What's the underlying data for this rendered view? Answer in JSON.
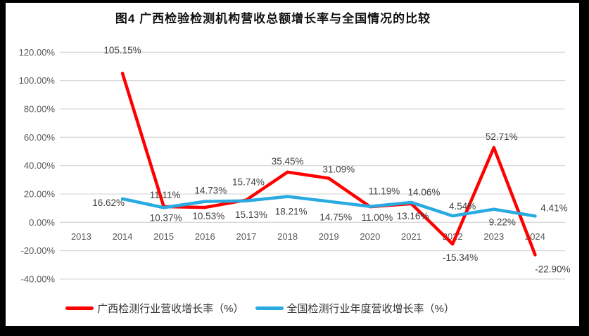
{
  "chart_data": {
    "type": "line",
    "title": "图4 广西检验检测机构营收总额增长率与全国情况的比较",
    "categories": [
      "2013",
      "2014",
      "2015",
      "2016",
      "2017",
      "2018",
      "2019",
      "2020",
      "2021",
      "2022",
      "2023",
      "2024"
    ],
    "y_ticks": [
      "120.00%",
      "100.00%",
      "80.00%",
      "60.00%",
      "40.00%",
      "20.00%",
      "0.00%",
      "-20.00%",
      "-40.00%"
    ],
    "ylim": [
      -40,
      120
    ],
    "y_tick_step": 20,
    "grid": true,
    "legend_position": "bottom",
    "colors": {
      "guangxi": "#FF0000",
      "national": "#29ABE2",
      "gridline": "#D9D9D9",
      "tick_text": "#595959",
      "data_label_text": "#404040"
    },
    "series": [
      {
        "name": "广西检测行业营收增长率（%）",
        "color": "#FF0000",
        "start_index": 1,
        "values": [
          105.15,
          11.11,
          10.53,
          15.74,
          35.45,
          31.09,
          11.0,
          13.16,
          -15.34,
          52.71,
          -22.9
        ],
        "labels": [
          "105.15%",
          "11.11%",
          "10.53%",
          "15.74%",
          "35.45%",
          "31.09%",
          "11.00%",
          "13.16%",
          "-15.34%",
          "52.71%",
          "-22.90%"
        ]
      },
      {
        "name": "全国检测行业年度营收增长率（%）",
        "color": "#29ABE2",
        "start_index": 1,
        "values": [
          16.62,
          10.37,
          14.73,
          15.13,
          18.21,
          14.75,
          11.19,
          14.06,
          4.54,
          9.22,
          4.41
        ],
        "labels": [
          "16.62%",
          "10.37%",
          "14.73%",
          "15.13%",
          "18.21%",
          "14.75%",
          "11.19%",
          "14.06%",
          "4.54%",
          "9.22%",
          "4.41%"
        ]
      }
    ]
  }
}
